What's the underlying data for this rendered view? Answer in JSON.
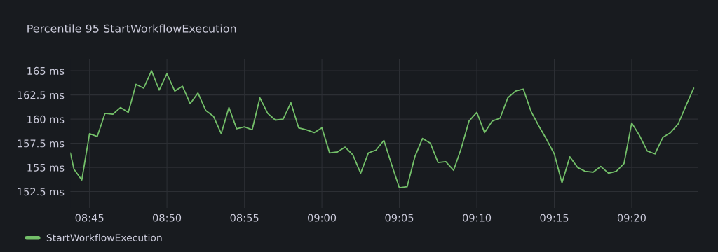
{
  "chart_data": {
    "type": "line",
    "title": "Percentile 95 StartWorkflowExecution",
    "x": [
      8.7294,
      8.7333,
      8.7417,
      8.75,
      8.7583,
      8.7667,
      8.775,
      8.7833,
      8.7917,
      8.8,
      8.8083,
      8.8167,
      8.825,
      8.8333,
      8.8417,
      8.85,
      8.8583,
      8.8667,
      8.875,
      8.8833,
      8.8917,
      8.9,
      8.9083,
      8.9167,
      8.925,
      8.9333,
      8.9417,
      8.95,
      8.9583,
      8.9667,
      8.975,
      8.9833,
      8.9917,
      9.0,
      9.0083,
      9.0167,
      9.025,
      9.0333,
      9.0417,
      9.05,
      9.0583,
      9.0667,
      9.075,
      9.0833,
      9.0917,
      9.1,
      9.1083,
      9.1167,
      9.125,
      9.1333,
      9.1417,
      9.15,
      9.1583,
      9.1667,
      9.175,
      9.1833,
      9.1917,
      9.2,
      9.2083,
      9.2167,
      9.225,
      9.2333,
      9.2417,
      9.25,
      9.2583,
      9.2667,
      9.275,
      9.2833,
      9.2917,
      9.3,
      9.3083,
      9.3167,
      9.325,
      9.3333,
      9.3417,
      9.35,
      9.3583,
      9.3667,
      9.375,
      9.3833,
      9.3917,
      9.4
    ],
    "series": [
      {
        "name": "StartWorkflowExecution",
        "color": "#73bf69",
        "values": [
          156.5,
          154.8,
          153.7,
          158.5,
          158.2,
          160.6,
          160.5,
          161.2,
          160.7,
          163.6,
          163.2,
          165.0,
          163.0,
          164.7,
          162.9,
          163.4,
          161.6,
          162.7,
          160.9,
          160.3,
          158.5,
          161.2,
          159.0,
          159.2,
          158.9,
          162.2,
          160.6,
          159.9,
          160.0,
          161.7,
          159.1,
          158.9,
          158.6,
          159.1,
          156.5,
          156.6,
          157.1,
          156.3,
          154.4,
          156.5,
          156.8,
          157.8,
          155.3,
          152.9,
          153.0,
          156.1,
          158.0,
          157.5,
          155.5,
          155.6,
          154.7,
          157.0,
          159.8,
          160.7,
          158.6,
          159.8,
          160.1,
          162.2,
          162.9,
          163.1,
          160.8,
          159.3,
          157.9,
          156.4,
          153.4,
          156.1,
          155.0,
          154.6,
          154.5,
          155.1,
          154.4,
          154.6,
          155.4,
          159.6,
          158.3,
          156.7,
          156.4,
          158.1,
          158.6,
          159.5,
          161.4,
          163.2
        ]
      }
    ],
    "xlim": [
      8.7294,
      9.4045
    ],
    "xticks": [
      {
        "value": 8.75,
        "label": "08:45"
      },
      {
        "value": 8.8333,
        "label": "08:50"
      },
      {
        "value": 8.9167,
        "label": "08:55"
      },
      {
        "value": 9.0,
        "label": "09:00"
      },
      {
        "value": 9.0833,
        "label": "09:05"
      },
      {
        "value": 9.1667,
        "label": "09:10"
      },
      {
        "value": 9.25,
        "label": "09:15"
      },
      {
        "value": 9.3333,
        "label": "09:20"
      }
    ],
    "ylim": [
      150.8,
      166.2
    ],
    "yticks": [
      {
        "value": 152.5,
        "label": "152.5 ms"
      },
      {
        "value": 155,
        "label": "155 ms"
      },
      {
        "value": 157.5,
        "label": "157.5 ms"
      },
      {
        "value": 160,
        "label": "160 ms"
      },
      {
        "value": 162.5,
        "label": "162.5 ms"
      },
      {
        "value": 165,
        "label": "165 ms"
      }
    ],
    "grid": true,
    "legend": "bottom left",
    "marker": "none",
    "line_style": "solid"
  }
}
